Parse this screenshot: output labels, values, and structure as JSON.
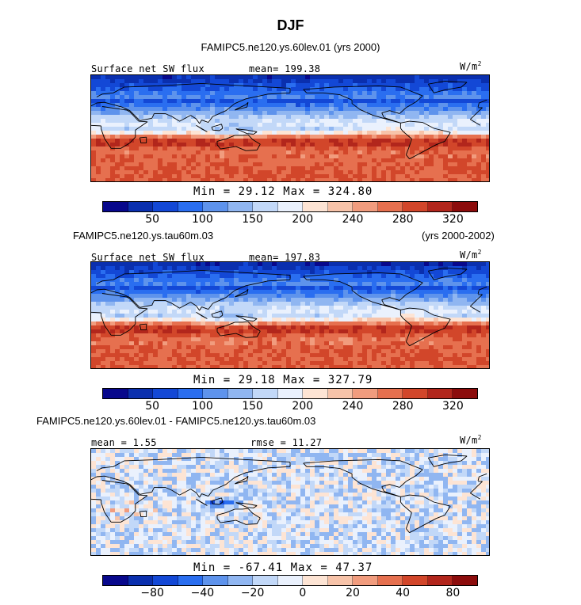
{
  "title": "DJF",
  "palette_sw": [
    "#08088c",
    "#0a2fae",
    "#1348d6",
    "#2a6ef0",
    "#5e93ec",
    "#90b6f1",
    "#c2d8f8",
    "#eaf1fd",
    "#fde4d4",
    "#f7c3a9",
    "#f19c7e",
    "#e6704f",
    "#d2462a",
    "#b2261c",
    "#8c0c0c"
  ],
  "palette_diff": [
    "#08088c",
    "#0a2fae",
    "#1348d6",
    "#2a6ef0",
    "#5e93ec",
    "#90b6f1",
    "#c2d8f8",
    "#eaf1fd",
    "#fde4d4",
    "#f7c3a9",
    "#f19c7e",
    "#e6704f",
    "#d2462a",
    "#b2261c",
    "#8c0c0c"
  ],
  "panels": [
    {
      "case_label": "FAMIPC5.ne120.ys.60lev.01 (yrs 2000)",
      "variable": "Surface net SW flux",
      "mean_text": "mean= 199.38",
      "units": "W/m",
      "units_exp": "2",
      "min_label": "Min =",
      "min_value": "29.12",
      "max_label": "Max =",
      "max_value": "324.80",
      "ticks": [
        "50",
        "100",
        "150",
        "200",
        "240",
        "280",
        "320"
      ]
    },
    {
      "case_label": "FAMIPC5.ne120.ys.tau60m.03",
      "years": "(yrs 2000-2002)",
      "variable": "Surface net SW flux",
      "mean_text": "mean= 197.83",
      "units": "W/m",
      "units_exp": "2",
      "min_label": "Min =",
      "min_value": "29.18",
      "max_label": "Max =",
      "max_value": "327.79",
      "ticks": [
        "50",
        "100",
        "150",
        "200",
        "240",
        "280",
        "320"
      ]
    },
    {
      "case_label": "FAMIPC5.ne120.ys.60lev.01 - FAMIPC5.ne120.ys.tau60m.03",
      "mean_text": "mean =   1.55",
      "rmse_text": "rmse =  11.27",
      "units": "W/m",
      "units_exp": "2",
      "min_label": "Min =",
      "min_value": "-67.41",
      "max_label": "Max =",
      "max_value": "47.37",
      "ticks": [
        "−80",
        "−40",
        "−20",
        "0",
        "20",
        "40",
        "80"
      ]
    }
  ],
  "chart_data": [
    {
      "type": "heatmap",
      "title": "Surface net SW flux",
      "subtitle": "FAMIPC5.ne120.ys.60lev.01 (yrs 2000)",
      "season": "DJF",
      "units": "W/m2",
      "mean": 199.38,
      "min": 29.12,
      "max": 324.8,
      "colorbar_levels": [
        50,
        100,
        150,
        200,
        240,
        280,
        320
      ],
      "map_projection": "cylindrical equidistant, global"
    },
    {
      "type": "heatmap",
      "title": "Surface net SW flux",
      "subtitle": "FAMIPC5.ne120.ys.tau60m.03 (yrs 2000-2002)",
      "season": "DJF",
      "units": "W/m2",
      "mean": 197.83,
      "min": 29.18,
      "max": 327.79,
      "colorbar_levels": [
        50,
        100,
        150,
        200,
        240,
        280,
        320
      ],
      "map_projection": "cylindrical equidistant, global"
    },
    {
      "type": "heatmap",
      "title": "",
      "subtitle": "FAMIPC5.ne120.ys.60lev.01 - FAMIPC5.ne120.ys.tau60m.03",
      "season": "DJF",
      "units": "W/m2",
      "mean": 1.55,
      "rmse": 11.27,
      "min": -67.41,
      "max": 47.37,
      "colorbar_levels": [
        -80,
        -40,
        -20,
        0,
        20,
        40,
        80
      ],
      "map_projection": "cylindrical equidistant, global"
    }
  ]
}
